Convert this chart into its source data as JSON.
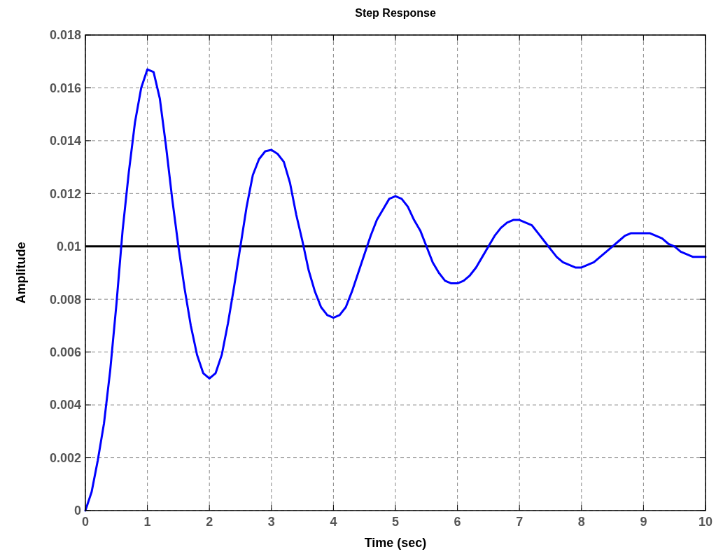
{
  "chart_data": {
    "type": "line",
    "title": "Step Response",
    "xlabel": "Time (sec)",
    "ylabel": "Amplitude",
    "x": [
      0,
      0.1,
      0.2,
      0.3,
      0.4,
      0.5,
      0.6,
      0.7,
      0.8,
      0.9,
      1,
      1.1,
      1.2,
      1.3,
      1.4,
      1.5,
      1.6,
      1.7,
      1.8,
      1.9,
      2,
      2.1,
      2.2,
      2.3,
      2.4,
      2.5,
      2.6,
      2.7,
      2.8,
      2.9,
      3,
      3.1,
      3.2,
      3.3,
      3.4,
      3.5,
      3.6,
      3.7,
      3.8,
      3.9,
      4,
      4.1,
      4.2,
      4.3,
      4.4,
      4.5,
      4.6,
      4.7,
      4.8,
      4.9,
      5,
      5.1,
      5.2,
      5.3,
      5.4,
      5.5,
      5.6,
      5.7,
      5.8,
      5.9,
      6,
      6.1,
      6.2,
      6.3,
      6.4,
      6.5,
      6.6,
      6.7,
      6.8,
      6.9,
      7,
      7.1,
      7.2,
      7.3,
      7.4,
      7.5,
      7.6,
      7.7,
      7.8,
      7.9,
      8,
      8.1,
      8.2,
      8.3,
      8.4,
      8.5,
      8.6,
      8.7,
      8.8,
      8.9,
      9,
      9.1,
      9.2,
      9.3,
      9.4,
      9.5,
      9.6,
      9.7,
      9.8,
      9.9,
      10
    ],
    "series": [
      {
        "color": "#0000ff",
        "values": [
          0,
          0.0007,
          0.0019,
          0.0033,
          0.0053,
          0.0078,
          0.0106,
          0.0128,
          0.0147,
          0.016,
          0.0167,
          0.0166,
          0.0156,
          0.0138,
          0.0118,
          0.01,
          0.0084,
          0.007,
          0.0059,
          0.0052,
          0.005,
          0.0052,
          0.0059,
          0.0071,
          0.0085,
          0.01,
          0.0115,
          0.0127,
          0.0133,
          0.0136,
          0.01365,
          0.0135,
          0.0132,
          0.0124,
          0.0112,
          0.0102,
          0.0091,
          0.0083,
          0.0077,
          0.0074,
          0.0073,
          0.0074,
          0.0077,
          0.0083,
          0.009,
          0.0097,
          0.0104,
          0.011,
          0.0114,
          0.0118,
          0.0119,
          0.0118,
          0.0115,
          0.011,
          0.0106,
          0.01,
          0.0094,
          0.009,
          0.0087,
          0.0086,
          0.0086,
          0.0087,
          0.0089,
          0.0092,
          0.0096,
          0.01,
          0.0104,
          0.0107,
          0.0109,
          0.011,
          0.011,
          0.0109,
          0.0108,
          0.0105,
          0.0102,
          0.0099,
          0.0096,
          0.0094,
          0.0093,
          0.0092,
          0.0092,
          0.0093,
          0.0094,
          0.0096,
          0.0098,
          0.01,
          0.0102,
          0.0104,
          0.0105,
          0.0105,
          0.0105,
          0.0105,
          0.0104,
          0.0103,
          0.0101,
          0.01,
          0.0098,
          0.0097,
          0.0096,
          0.0096,
          0.0096
        ]
      }
    ],
    "ref_lines": [
      {
        "axis": "y",
        "value": 0.01,
        "color": "#000000"
      }
    ],
    "xlim": [
      0,
      10
    ],
    "xticks": [
      0,
      1,
      2,
      3,
      4,
      5,
      6,
      7,
      8,
      9,
      10
    ],
    "ylim": [
      0,
      0.018
    ],
    "yticks": [
      0,
      0.002,
      0.004,
      0.006,
      0.008,
      0.01,
      0.012,
      0.014,
      0.016,
      0.018
    ],
    "grid": true,
    "line_style": "solid",
    "marker": "none"
  }
}
